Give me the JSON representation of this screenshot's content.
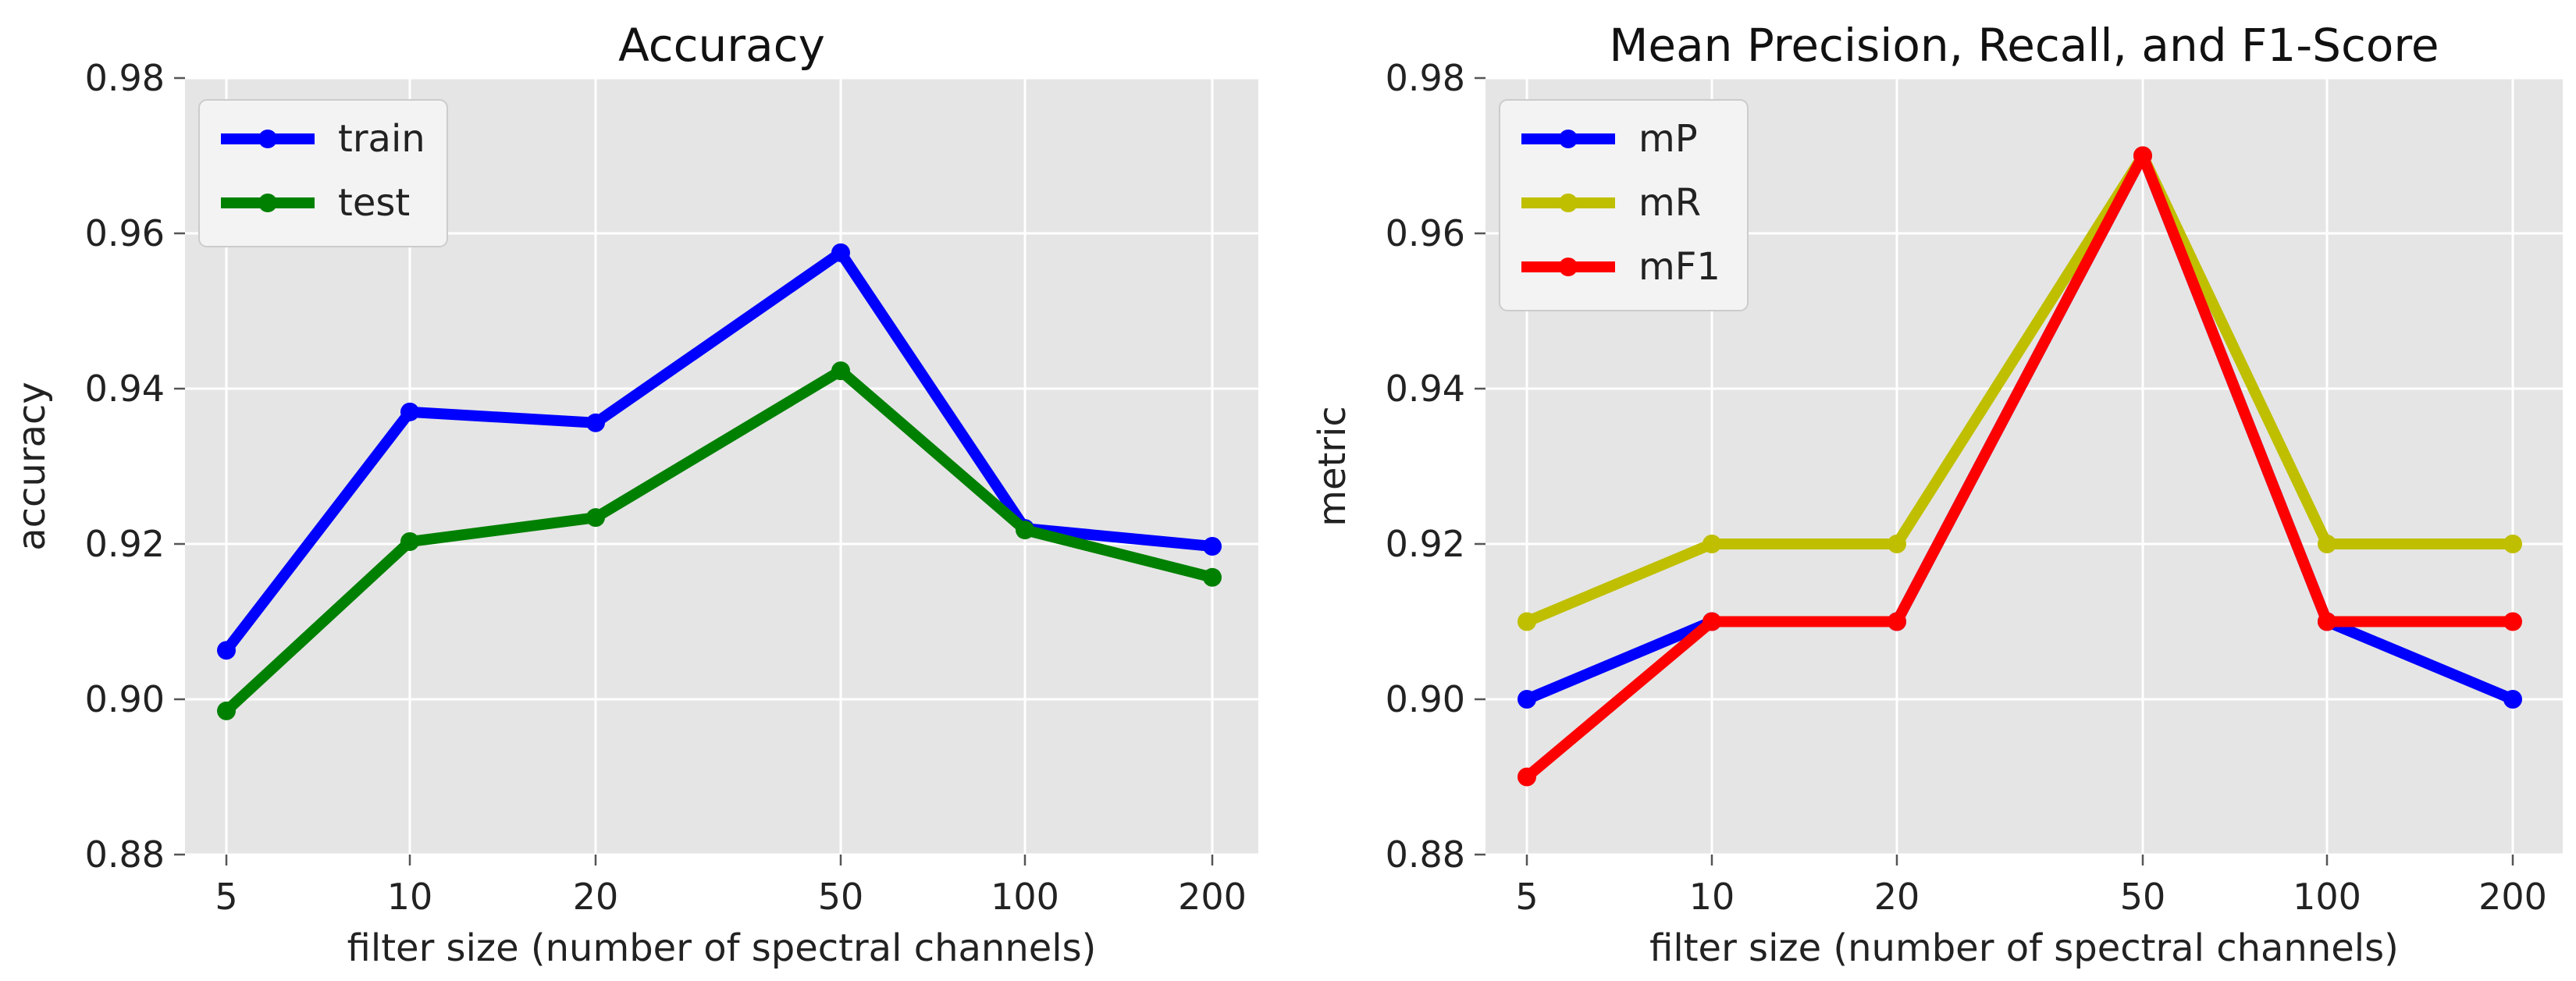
{
  "chart_data": [
    {
      "type": "line",
      "title": "Accuracy",
      "xlabel": "filter size (number of spectral channels)",
      "ylabel": "accuracy",
      "categories": [
        "5",
        "10",
        "20",
        "50",
        "100",
        "200"
      ],
      "ylim": [
        0.88,
        0.98
      ],
      "yticks": [
        "0.88",
        "0.90",
        "0.92",
        "0.94",
        "0.96",
        "0.98"
      ],
      "grid": true,
      "legend_position": "top-left",
      "series": [
        {
          "name": "train",
          "color": "#0000ff",
          "values": [
            0.9063,
            0.937,
            0.9356,
            0.9575,
            0.922,
            0.9197
          ]
        },
        {
          "name": "test",
          "color": "#008000",
          "values": [
            0.8985,
            0.9203,
            0.9234,
            0.9423,
            0.9218,
            0.9157
          ]
        }
      ]
    },
    {
      "type": "line",
      "title": "Mean Precision, Recall, and F1-Score",
      "xlabel": "filter size (number of spectral channels)",
      "ylabel": "metric",
      "categories": [
        "5",
        "10",
        "20",
        "50",
        "100",
        "200"
      ],
      "ylim": [
        0.88,
        0.98
      ],
      "yticks": [
        "0.88",
        "0.90",
        "0.92",
        "0.94",
        "0.96",
        "0.98"
      ],
      "grid": true,
      "legend_position": "top-left",
      "series": [
        {
          "name": "mP",
          "color": "#0000ff",
          "values": [
            0.9,
            0.91,
            0.91,
            0.97,
            0.91,
            0.9
          ]
        },
        {
          "name": "mR",
          "color": "#bfbf00",
          "values": [
            0.91,
            0.92,
            0.92,
            0.97,
            0.92,
            0.92
          ]
        },
        {
          "name": "mF1",
          "color": "#ff0000",
          "values": [
            0.89,
            0.91,
            0.91,
            0.97,
            0.91,
            0.91
          ]
        }
      ]
    }
  ]
}
